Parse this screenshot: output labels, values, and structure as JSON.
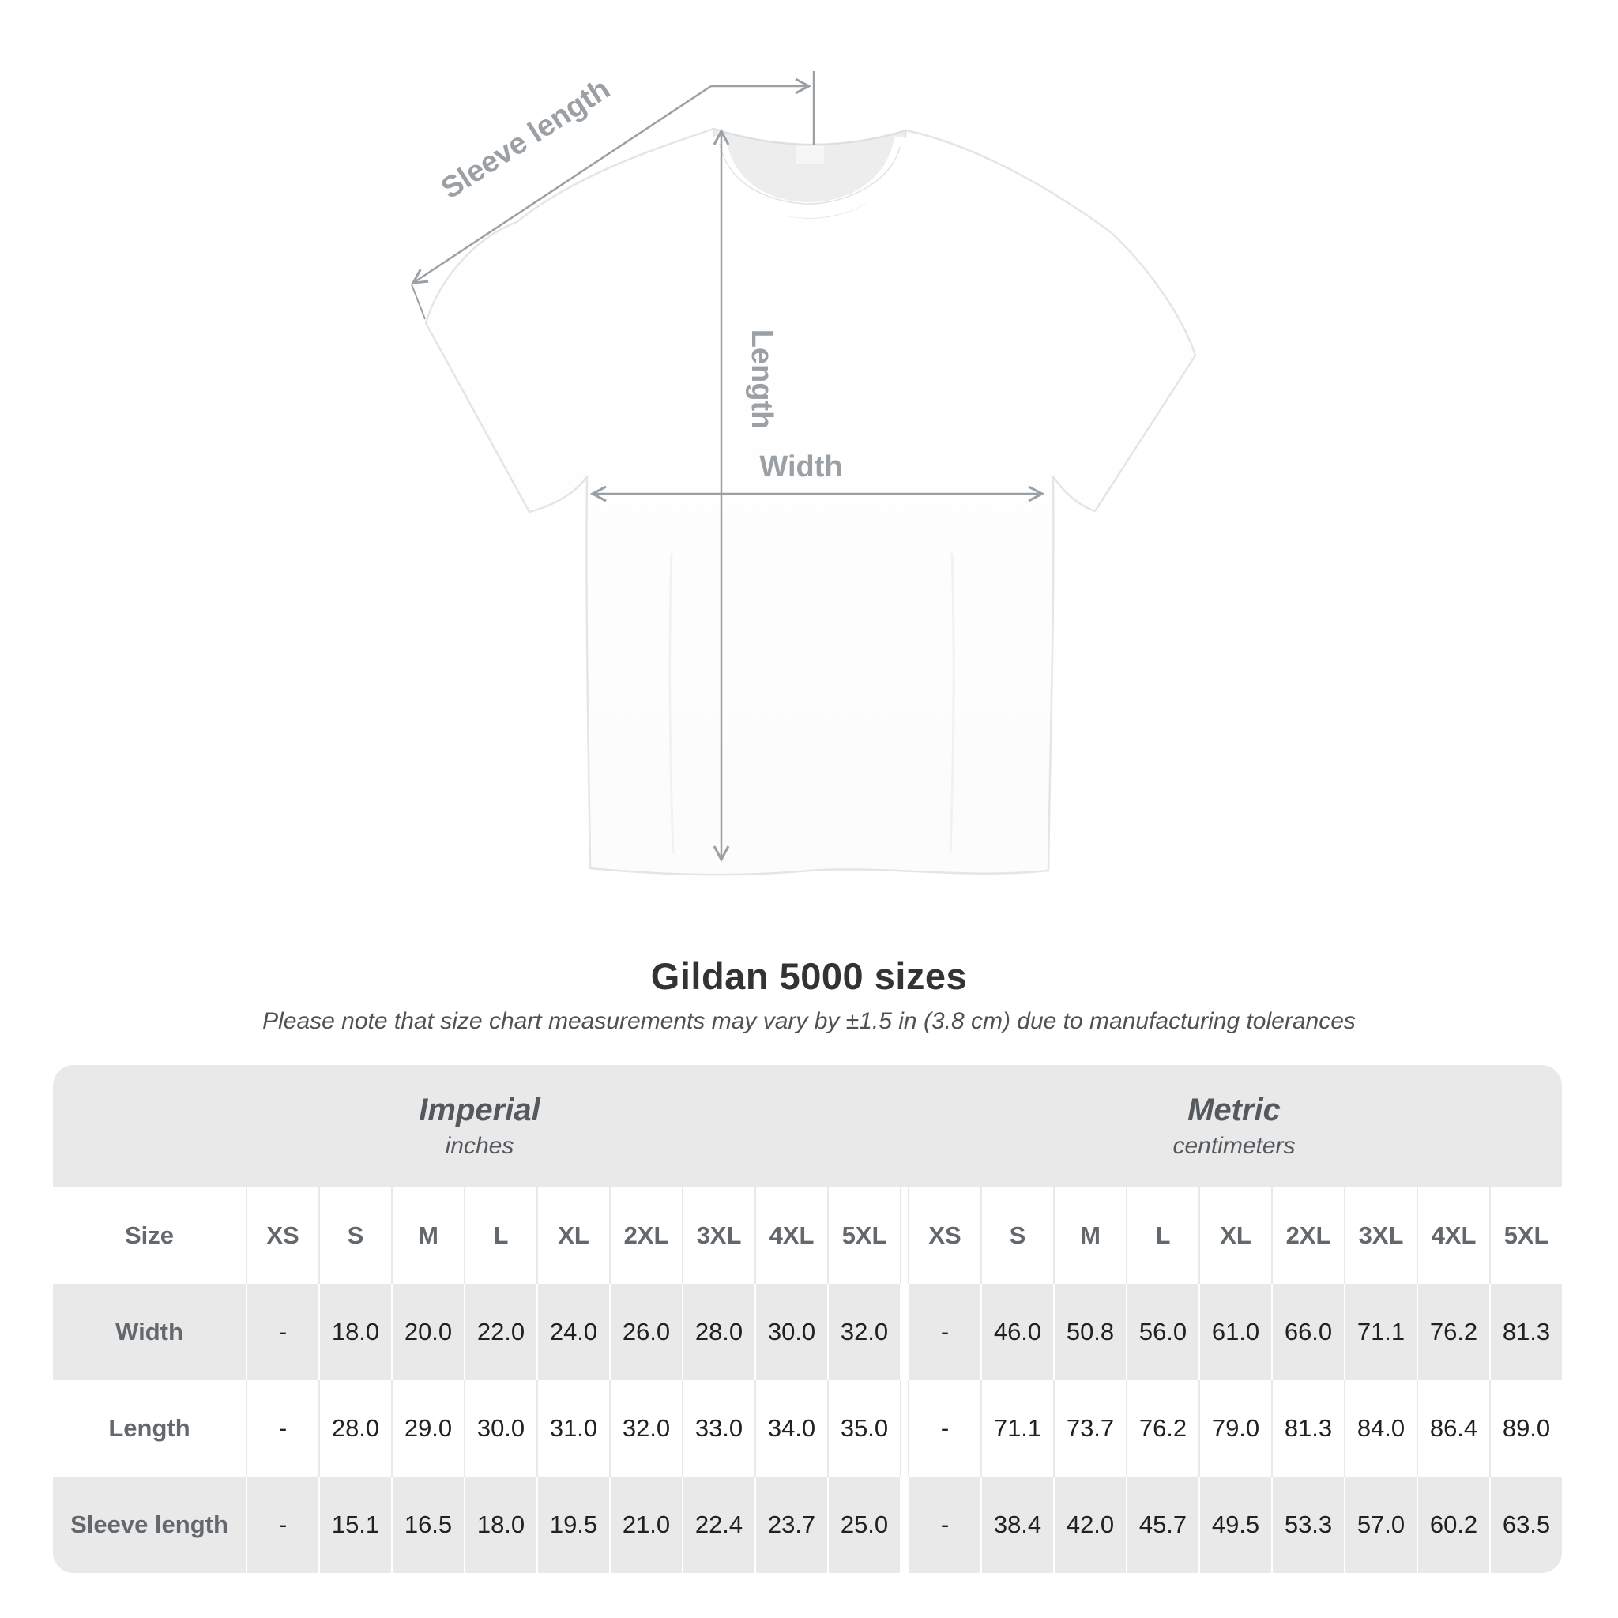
{
  "diagram": {
    "sleeve_length_label": "Sleeve length",
    "length_label": "Length",
    "width_label": "Width",
    "annotation_color": "#9aa0a3"
  },
  "chart_data": {
    "type": "table",
    "title": "Gildan 5000 sizes",
    "note": "Please note that size chart measurements may vary by ±1.5 in (3.8 cm) due to manufacturing tolerances",
    "unit_groups": [
      {
        "name": "Imperial",
        "unit": "inches"
      },
      {
        "name": "Metric",
        "unit": "centimeters"
      }
    ],
    "size_column_header": "Size",
    "sizes": [
      "XS",
      "S",
      "M",
      "L",
      "XL",
      "2XL",
      "3XL",
      "4XL",
      "5XL"
    ],
    "rows": [
      {
        "label": "Width",
        "imperial": [
          "-",
          "18.0",
          "20.0",
          "22.0",
          "24.0",
          "26.0",
          "28.0",
          "30.0",
          "32.0"
        ],
        "metric": [
          "-",
          "46.0",
          "50.8",
          "56.0",
          "61.0",
          "66.0",
          "71.1",
          "76.2",
          "81.3"
        ]
      },
      {
        "label": "Length",
        "imperial": [
          "-",
          "28.0",
          "29.0",
          "30.0",
          "31.0",
          "32.0",
          "33.0",
          "34.0",
          "35.0"
        ],
        "metric": [
          "-",
          "71.1",
          "73.7",
          "76.2",
          "79.0",
          "81.3",
          "84.0",
          "86.4",
          "89.0"
        ]
      },
      {
        "label": "Sleeve length",
        "imperial": [
          "-",
          "15.1",
          "16.5",
          "18.0",
          "19.5",
          "21.0",
          "22.4",
          "23.7",
          "25.0"
        ],
        "metric": [
          "-",
          "38.4",
          "42.0",
          "45.7",
          "49.5",
          "53.3",
          "57.0",
          "60.2",
          "63.5"
        ]
      }
    ],
    "colors": {
      "band_gray": "#e9e9ea",
      "label_gray": "#63686c",
      "value_dark": "#202124"
    }
  }
}
